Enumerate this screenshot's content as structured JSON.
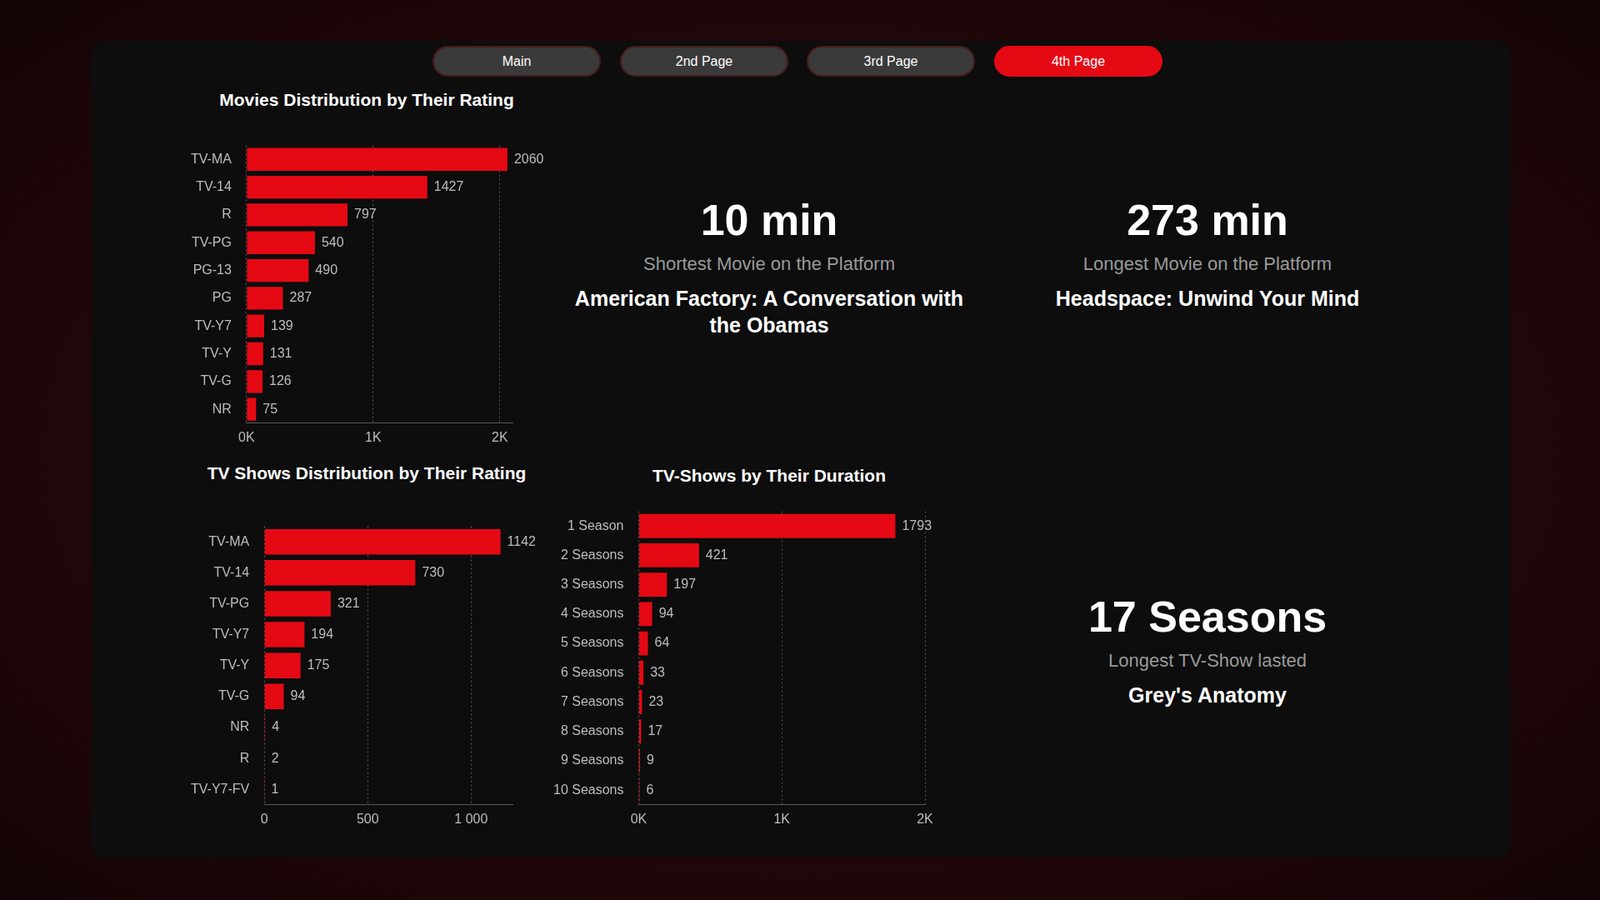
{
  "nav": {
    "buttons": [
      "Main",
      "2nd Page",
      "3rd Page",
      "4th Page"
    ],
    "active": "4th Page"
  },
  "chart_data": [
    {
      "type": "bar",
      "title": "Movies Distribution by Their Rating",
      "orientation": "horizontal",
      "categories": [
        "TV-MA",
        "TV-14",
        "R",
        "TV-PG",
        "PG-13",
        "PG",
        "TV-Y7",
        "TV-Y",
        "TV-G",
        "NR"
      ],
      "values": [
        2060,
        1427,
        797,
        540,
        490,
        287,
        139,
        131,
        126,
        75
      ],
      "color": "#e50914",
      "xlim": [
        0,
        2100
      ],
      "xticks": [
        {
          "value": 0,
          "label": "0K"
        },
        {
          "value": 1000,
          "label": "1K"
        },
        {
          "value": 2000,
          "label": "2K"
        }
      ],
      "grid": true,
      "data_labels": true
    },
    {
      "type": "bar",
      "title": "TV Shows Distribution by Their Rating",
      "orientation": "horizontal",
      "categories": [
        "TV-MA",
        "TV-14",
        "TV-PG",
        "TV-Y7",
        "TV-Y",
        "TV-G",
        "NR",
        "R",
        "TV-Y7-FV"
      ],
      "values": [
        1142,
        730,
        321,
        194,
        175,
        94,
        4,
        2,
        1
      ],
      "color": "#e50914",
      "xlim": [
        0,
        1200
      ],
      "xticks": [
        0,
        500,
        {
          "value": 1000,
          "label": "1 000"
        }
      ],
      "grid": true,
      "data_labels": true
    },
    {
      "type": "bar",
      "title": "TV-Shows by Their Duration",
      "orientation": "horizontal",
      "categories": [
        "1 Season",
        "2 Seasons",
        "3 Seasons",
        "4 Seasons",
        "5 Seasons",
        "6 Seasons",
        "7 Seasons",
        "8 Seasons",
        "9 Seasons",
        "10 Seasons"
      ],
      "values": [
        1793,
        421,
        197,
        94,
        64,
        33,
        23,
        17,
        9,
        6
      ],
      "color": "#e50914",
      "xlim": [
        0,
        2000
      ],
      "xticks": [
        {
          "value": 0,
          "label": "0K"
        },
        {
          "value": 1000,
          "label": "1K"
        },
        {
          "value": 2000,
          "label": "2K"
        }
      ],
      "grid": true,
      "data_labels": true
    }
  ],
  "cards": [
    {
      "value": "10 min",
      "label": "Shortest Movie on the Platform",
      "title": "American Factory: A Conversation with the Obamas"
    },
    {
      "value": "273 min",
      "label": "Longest Movie on the Platform",
      "title": "Headspace: Unwind Your Mind"
    },
    {
      "value": "17 Seasons",
      "label": "Longest TV-Show lasted",
      "title": "Grey's Anatomy"
    }
  ]
}
